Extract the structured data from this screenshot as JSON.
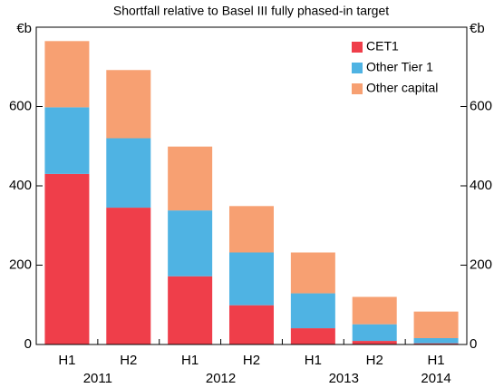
{
  "chart_data": {
    "type": "stacked_bar",
    "subtitle": "Shortfall relative to Basel III fully phased-in target",
    "unit": "€b",
    "categories": [
      "H1",
      "H2",
      "H1",
      "H2",
      "H1",
      "H2",
      "H1"
    ],
    "year_labels": [
      "2011",
      "2012",
      "2013",
      "2014"
    ],
    "series": [
      {
        "name": "CET1",
        "color": "#ef3e4a",
        "values": [
          430,
          345,
          172,
          99,
          41,
          9,
          3
        ]
      },
      {
        "name": "Other Tier 1",
        "color": "#4fb3e3",
        "values": [
          168,
          175,
          166,
          133,
          88,
          42,
          13
        ]
      },
      {
        "name": "Other capital",
        "color": "#f7a072",
        "values": [
          167,
          172,
          161,
          117,
          103,
          69,
          67
        ]
      }
    ],
    "ylim": [
      0,
      800
    ],
    "yticks": [
      0,
      200,
      400,
      600
    ],
    "legend": "top-right"
  }
}
